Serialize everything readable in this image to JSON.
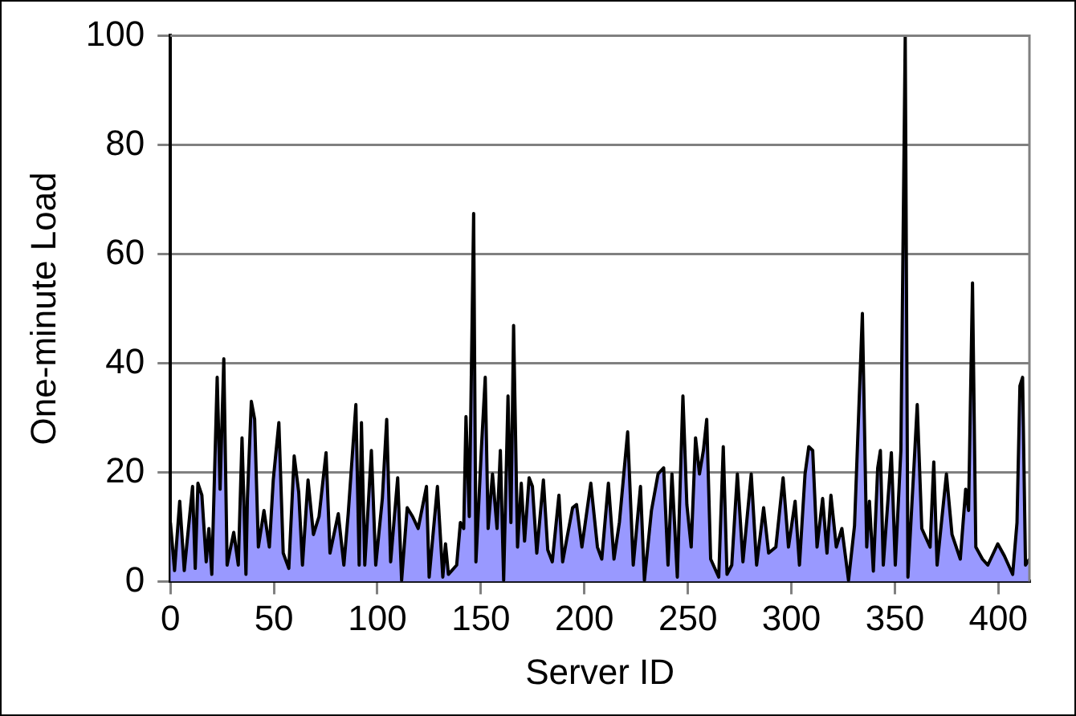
{
  "chart_data": {
    "type": "area",
    "xlabel": "Server ID",
    "ylabel": "One-minute Load",
    "xlim": [
      0,
      415
    ],
    "xticks": [
      0,
      50,
      100,
      150,
      200,
      250,
      300,
      350,
      400
    ],
    "ylim": [
      0,
      100
    ],
    "yticks": [
      0,
      20,
      40,
      60,
      80,
      100
    ],
    "grid": "y",
    "legend": false,
    "series": [
      {
        "color": "#9999ff",
        "x": [
          0,
          2,
          4.5,
          6.7,
          10.7,
          12,
          13.3,
          15.2,
          17.3,
          18.6,
          20,
          22.6,
          24,
          25.8,
          27.4,
          30.6,
          32.8,
          34.6,
          36.5,
          37.2,
          39.1,
          40.7,
          42.5,
          45.2,
          47.8,
          49.7,
          52.4,
          54.5,
          57.2,
          59.8,
          62,
          63.8,
          66.5,
          69.1,
          71.8,
          75.2,
          77.1,
          81.1,
          83.8,
          85.9,
          89.6,
          91.2,
          92.3,
          93.9,
          97.1,
          99.2,
          102.4,
          104.5,
          106.4,
          109.8,
          111.7,
          114.4,
          117,
          119.7,
          123.7,
          125,
          129,
          131.6,
          132.9,
          134.3,
          138.3,
          140.1,
          141.7,
          142.8,
          144.4,
          146.5,
          147.6,
          150.3,
          152.1,
          153.5,
          155.6,
          157.8,
          159.4,
          161,
          163.1,
          164.5,
          165.8,
          167.7,
          169.5,
          171.1,
          173.3,
          174.9,
          177,
          180.2,
          182.3,
          184.5,
          187.7,
          189.5,
          191.6,
          194.3,
          196.2,
          198.8,
          203.1,
          206.3,
          208.4,
          211.6,
          214.3,
          216.9,
          220.9,
          223.6,
          227.1,
          229,
          232.4,
          235.6,
          238.3,
          240.4,
          242.3,
          244.9,
          247.6,
          249.5,
          251.6,
          253.7,
          255.6,
          257.5,
          259.1,
          261,
          264.9,
          267.1,
          268.9,
          271.2,
          273.9,
          276.6,
          280.6,
          283.2,
          286.6,
          289,
          292.5,
          296,
          298.6,
          301.8,
          303.9,
          306.6,
          308.4,
          310.3,
          312.4,
          315.1,
          317.2,
          319.1,
          321.7,
          324.4,
          327.6,
          330.5,
          334.3,
          336.4,
          337.7,
          339.6,
          341.7,
          343,
          344.4,
          348.3,
          350.2,
          352.9,
          355,
          356.3,
          359.5,
          360.8,
          363,
          367,
          368.8,
          370.4,
          374.9,
          377.6,
          381.6,
          384.2,
          385.6,
          387.5,
          389.1,
          392.3,
          394.9,
          399.7,
          402.9,
          406.9,
          409,
          410.4,
          411.7,
          413.1,
          415
        ],
        "values": [
          10.8,
          2,
          14.7,
          2,
          17.4,
          2.4,
          18,
          15.8,
          3.6,
          9.7,
          1.3,
          37.4,
          16.9,
          40.8,
          3,
          9,
          3,
          26.3,
          1.3,
          15.2,
          33,
          29.7,
          6.3,
          13,
          6.3,
          18.6,
          29.1,
          5.2,
          2.4,
          23,
          16.3,
          3,
          18.6,
          8.6,
          11.9,
          23.6,
          5.2,
          12.4,
          3,
          12.4,
          32.4,
          3,
          29.1,
          3,
          24,
          3,
          15.2,
          29.7,
          3.6,
          19,
          0.2,
          13.5,
          11.9,
          9.7,
          17.4,
          0.8,
          17.4,
          0.8,
          6.9,
          1.3,
          3,
          10.8,
          9.7,
          30.2,
          11.9,
          67.4,
          3.6,
          24.7,
          37.4,
          9.7,
          19.7,
          9.7,
          24,
          0.2,
          34,
          10.8,
          46.9,
          6.3,
          18,
          7.4,
          19,
          17.4,
          5.2,
          18.6,
          5.8,
          3.6,
          15.8,
          3.6,
          8,
          13.5,
          14.1,
          6.3,
          18,
          6.3,
          4.1,
          18,
          4.1,
          10.8,
          27.4,
          3,
          17.4,
          0.2,
          13,
          19.7,
          20.8,
          3,
          19.7,
          0.8,
          34,
          14.1,
          6.3,
          26.3,
          19.7,
          24,
          29.7,
          4.1,
          0.8,
          24.7,
          1.3,
          3,
          19.7,
          3.6,
          19.7,
          3,
          13.5,
          5.2,
          6.3,
          19,
          6.3,
          14.7,
          3,
          19.7,
          24.7,
          24,
          6.3,
          15.2,
          5.2,
          15.8,
          6.3,
          9.7,
          0.2,
          10.2,
          49.1,
          6.3,
          14.7,
          1.9,
          20.8,
          24,
          3,
          23.6,
          3,
          24,
          100,
          0.8,
          23,
          32.4,
          9.7,
          6.3,
          21.9,
          3,
          19.7,
          8.6,
          4.1,
          16.9,
          13,
          54.7,
          6.3,
          4.1,
          3,
          6.9,
          4.7,
          1.3,
          10.8,
          35.8,
          37.4,
          3,
          4.1
        ]
      }
    ]
  }
}
